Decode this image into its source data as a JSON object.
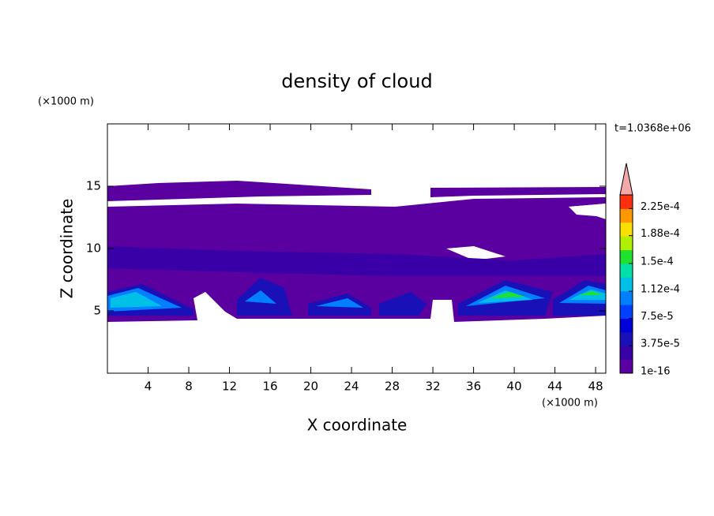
{
  "chart_data": {
    "type": "contour",
    "title": "density of cloud",
    "x_label": "X coordinate",
    "y_label": "Z coordinate",
    "x_unit": "(×1000 m)",
    "y_unit": "(×1000 m)",
    "annotation": "t=1.0368e+06",
    "xlim": [
      0,
      49
    ],
    "ylim": [
      0,
      20
    ],
    "xticks": [
      4,
      8,
      12,
      16,
      20,
      24,
      28,
      32,
      36,
      40,
      44,
      48
    ],
    "yticks": [
      5,
      10,
      15
    ],
    "colorbar": {
      "colors": [
        "#5a00a0",
        "#3a00a8",
        "#1a10b8",
        "#0000d8",
        "#0040ff",
        "#0080ff",
        "#00c0e8",
        "#00e0a8",
        "#20e030",
        "#b0f000",
        "#f8e000",
        "#ff9800",
        "#ff3010"
      ],
      "extend_color": "#f4a8a8",
      "lim": [
        1e-16,
        0.00024375
      ],
      "ticks": [
        {
          "value": 1e-16,
          "label": "1e-16"
        },
        {
          "value": 3.75e-05,
          "label": "3.75e-5"
        },
        {
          "value": 7.5e-05,
          "label": "7.5e-5"
        },
        {
          "value": 0.000112,
          "label": "1.12e-4"
        },
        {
          "value": 0.00015,
          "label": "1.5e-4"
        },
        {
          "value": 0.000188,
          "label": "1.88e-4"
        },
        {
          "value": 0.000225,
          "label": "2.25e-4"
        }
      ]
    }
  }
}
